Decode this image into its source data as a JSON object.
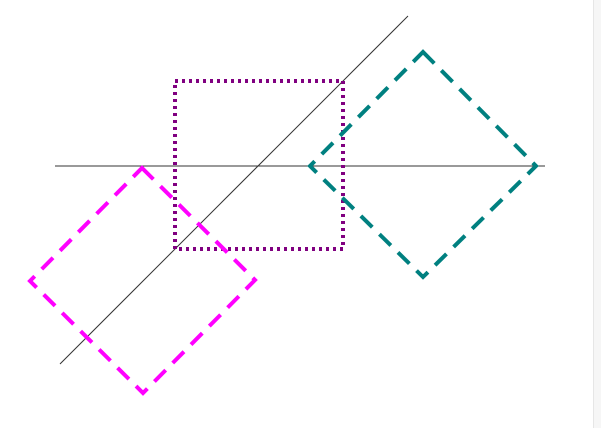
{
  "diagram": {
    "background": "#ffffff",
    "line_color": "#333333",
    "shapes": [
      {
        "name": "purple-dotted-square",
        "color": "#800080",
        "style": "dotted"
      },
      {
        "name": "teal-dashed-diamond",
        "color": "#008080",
        "style": "dashed"
      },
      {
        "name": "magenta-dashed-rectangle",
        "color": "#ff00ff",
        "style": "dashed"
      }
    ],
    "lines": [
      {
        "name": "horizontal-line"
      },
      {
        "name": "diagonal-line"
      }
    ]
  }
}
